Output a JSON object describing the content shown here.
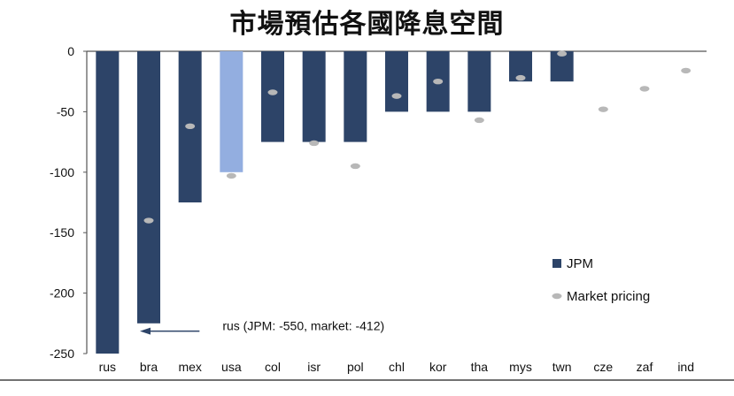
{
  "chart_data": {
    "type": "bar",
    "title": "市場預估各國降息空間",
    "categories": [
      "rus",
      "bra",
      "mex",
      "usa",
      "col",
      "isr",
      "pol",
      "chl",
      "kor",
      "tha",
      "mys",
      "twn",
      "cze",
      "zaf",
      "ind"
    ],
    "ylim": [
      -250,
      0
    ],
    "yticks": [
      0,
      -50,
      -100,
      -150,
      -200,
      -250
    ],
    "ytick_labels": [
      "0",
      "-50",
      "-100",
      "-150",
      "-200",
      "-250"
    ],
    "legend_position": "right",
    "series": [
      {
        "name": "JPM",
        "kind": "bar",
        "color": "#2d4468",
        "highlight_color": "#93aee0",
        "highlight_category": "usa",
        "values": [
          -250,
          -225,
          -125,
          -100,
          -75,
          -75,
          -75,
          -50,
          -50,
          -50,
          -25,
          -25,
          null,
          null,
          null
        ]
      },
      {
        "name": "Market pricing",
        "kind": "dot",
        "color": "#b8b8b8",
        "values": [
          null,
          -140,
          -62,
          -103,
          -34,
          -76,
          -95,
          -37,
          -25,
          -57,
          -22,
          -2,
          -48,
          -31,
          -16
        ]
      }
    ],
    "annotation": {
      "text": "rus (JPM: -550, market: -412)",
      "arrow_y": -230,
      "arrow_from_category": "usa",
      "arrow_to_category": "bra"
    },
    "grid": false
  }
}
